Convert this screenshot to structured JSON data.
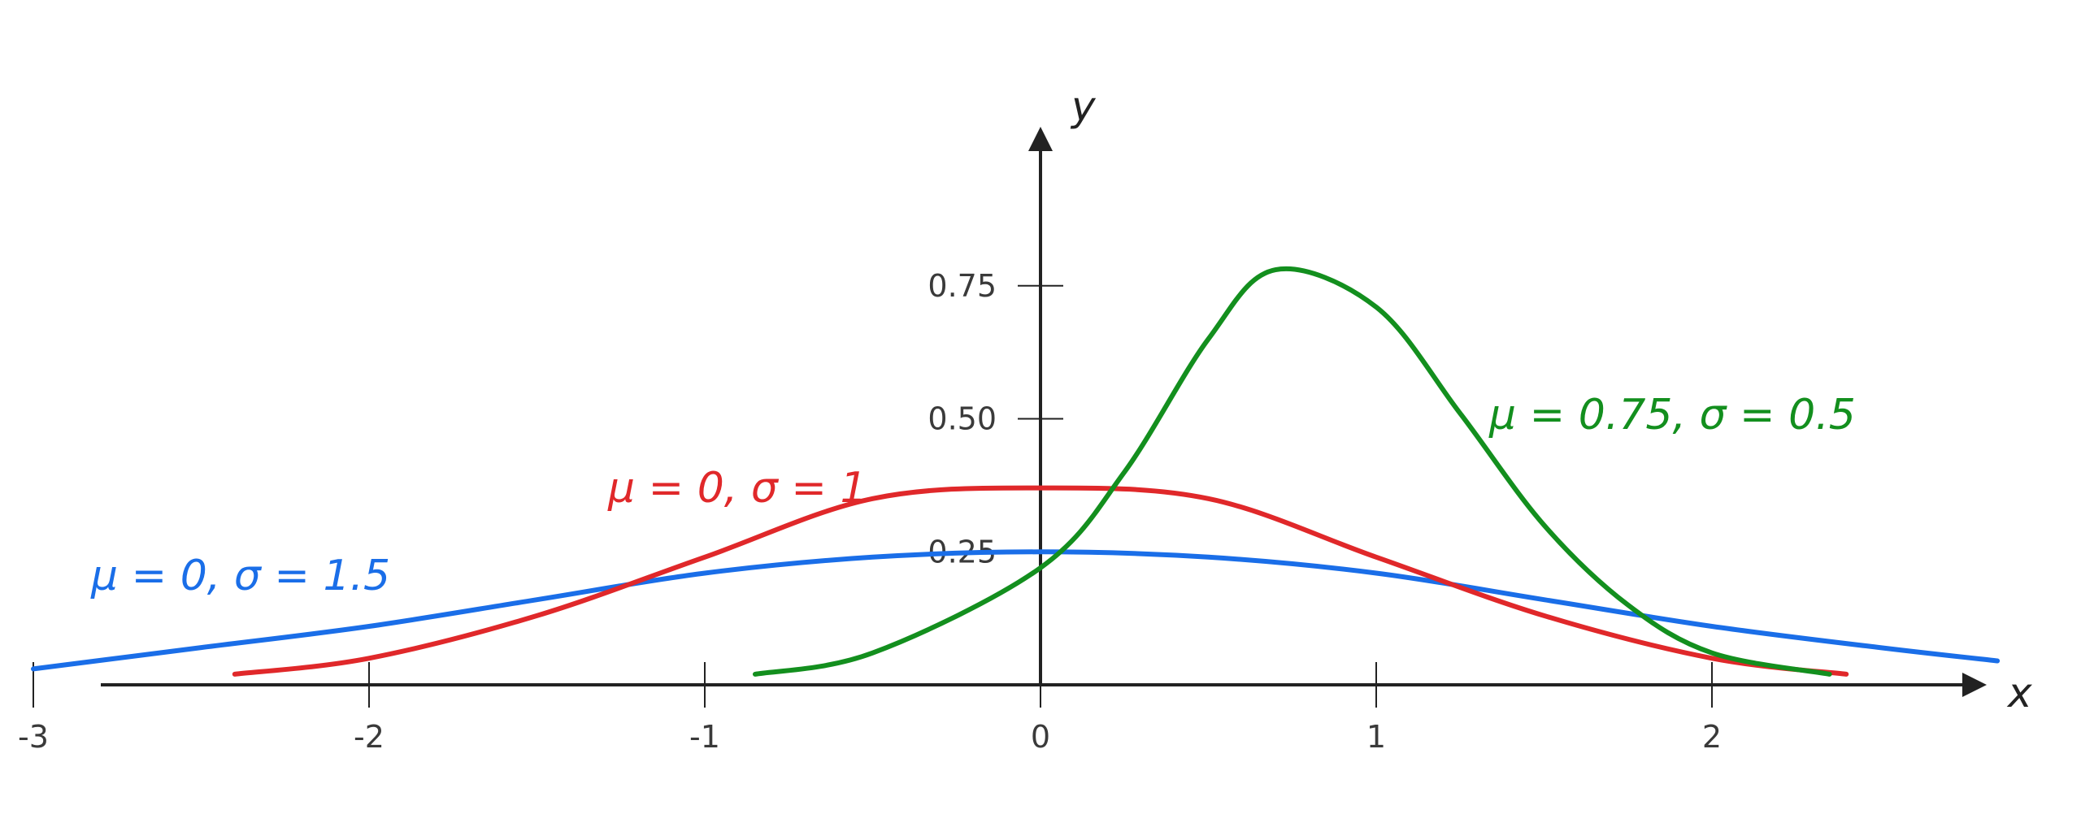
{
  "chart_data": {
    "type": "line",
    "title": "",
    "xlabel": "x",
    "ylabel": "y",
    "xlim": [
      -3,
      2.85
    ],
    "ylim": [
      0,
      1.2
    ],
    "x_ticks": [
      -3,
      -2,
      -1,
      0,
      1,
      2
    ],
    "x_tick_labels": [
      "-3",
      "-2",
      "-1",
      "0",
      "1",
      "2"
    ],
    "y_ticks": [
      0.25,
      0.5,
      0.75
    ],
    "y_tick_labels": [
      "0.25",
      "0.50",
      "0.75"
    ],
    "grid": false,
    "legend": "none",
    "series": [
      {
        "name": "μ = 0, σ = 1.5",
        "color": "#1a6ee8",
        "mu": 0,
        "sigma": 1.5,
        "x": [
          -3.0,
          -2.5,
          -2.0,
          -1.5,
          -1.0,
          -0.5,
          0.0,
          0.5,
          1.0,
          1.5,
          2.0,
          2.5,
          2.85
        ],
        "values": [
          0.03,
          0.07,
          0.11,
          0.16,
          0.21,
          0.24,
          0.25,
          0.24,
          0.21,
          0.16,
          0.11,
          0.07,
          0.045
        ]
      },
      {
        "name": "μ = 0, σ = 1",
        "color": "#e0282a",
        "mu": 0,
        "sigma": 1,
        "x": [
          -2.4,
          -2.0,
          -1.5,
          -1.0,
          -0.5,
          0.0,
          0.5,
          1.0,
          1.5,
          2.0,
          2.4
        ],
        "values": [
          0.02,
          0.05,
          0.13,
          0.24,
          0.35,
          0.37,
          0.35,
          0.24,
          0.13,
          0.05,
          0.02
        ]
      },
      {
        "name": "μ = 0.75, σ = 0.5",
        "color": "#138f1e",
        "mu": 0.75,
        "sigma": 0.5,
        "x": [
          -0.85,
          -0.5,
          0.0,
          0.25,
          0.5,
          0.7,
          1.0,
          1.25,
          1.5,
          1.75,
          2.0,
          2.35
        ],
        "values": [
          0.02,
          0.06,
          0.22,
          0.4,
          0.65,
          0.78,
          0.71,
          0.51,
          0.3,
          0.15,
          0.06,
          0.02
        ]
      }
    ]
  }
}
